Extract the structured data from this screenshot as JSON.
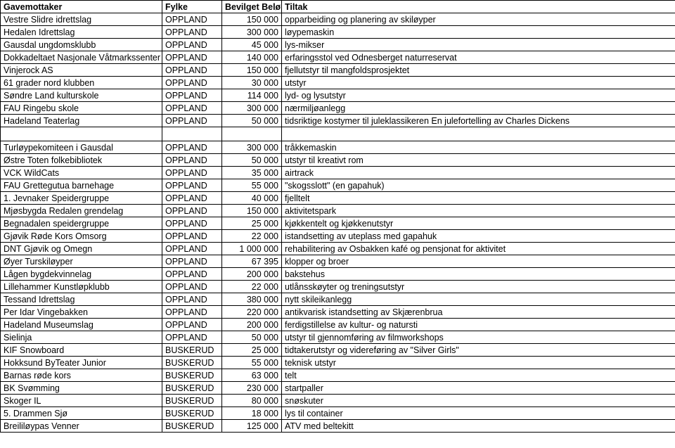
{
  "columns": [
    "Gavemottaker",
    "Fylke",
    "Bevilget Beløp",
    "Tiltak"
  ],
  "groups": [
    {
      "rows": [
        {
          "recipient": "Vestre Slidre idrettslag",
          "county": "OPPLAND",
          "amount": "150 000",
          "measure": "opparbeiding og planering av skiløyper"
        },
        {
          "recipient": "Hedalen Idrettslag",
          "county": "OPPLAND",
          "amount": "300 000",
          "measure": "løypemaskin"
        },
        {
          "recipient": "Gausdal ungdomsklubb",
          "county": "OPPLAND",
          "amount": "45 000",
          "measure": "lys-mikser"
        },
        {
          "recipient": "Dokkadeltaet Nasjonale Våtmarkssenter",
          "county": "OPPLAND",
          "amount": "140 000",
          "measure": "erfaringsstol ved Odnesberget naturreservat"
        },
        {
          "recipient": "Vinjerock AS",
          "county": "OPPLAND",
          "amount": "150 000",
          "measure": "fjellutstyr til mangfoldsprosjektet"
        },
        {
          "recipient": "61 grader nord klubben",
          "county": "OPPLAND",
          "amount": "30 000",
          "measure": "utstyr"
        },
        {
          "recipient": "Søndre Land kulturskole",
          "county": "OPPLAND",
          "amount": "114 000",
          "measure": "lyd- og lysutstyr"
        },
        {
          "recipient": "FAU Ringebu skole",
          "county": "OPPLAND",
          "amount": "300 000",
          "measure": "nærmiljøanlegg"
        },
        {
          "recipient": "Hadeland Teaterlag",
          "county": "OPPLAND",
          "amount": "50 000",
          "measure": "tidsriktige kostymer til juleklassikeren En julefortelling av Charles Dickens"
        }
      ]
    },
    {
      "rows": [
        {
          "recipient": "Turløypekomiteen i Gausdal",
          "county": "OPPLAND",
          "amount": "300 000",
          "measure": "tråkkemaskin"
        },
        {
          "recipient": "Østre Toten folkebibliotek",
          "county": "OPPLAND",
          "amount": "50 000",
          "measure": "utstyr til kreativt rom"
        },
        {
          "recipient": "VCK WildCats",
          "county": "OPPLAND",
          "amount": "35 000",
          "measure": "airtrack"
        },
        {
          "recipient": "FAU Grettegutua barnehage",
          "county": "OPPLAND",
          "amount": "55 000",
          "measure": "\"skogsslott\" (en gapahuk)"
        },
        {
          "recipient": "1. Jevnaker Speidergruppe",
          "county": "OPPLAND",
          "amount": "40 000",
          "measure": "fjelltelt"
        },
        {
          "recipient": "Mjøsbygda Redalen grendelag",
          "county": "OPPLAND",
          "amount": "150 000",
          "measure": "aktivitetspark"
        },
        {
          "recipient": "Begnadalen speidergruppe",
          "county": "OPPLAND",
          "amount": "25 000",
          "measure": "kjøkkentelt og kjøkkenutstyr"
        },
        {
          "recipient": "Gjøvik Røde Kors Omsorg",
          "county": "OPPLAND",
          "amount": "22 000",
          "measure": "istandsetting av uteplass med gapahuk"
        },
        {
          "recipient": "DNT Gjøvik og Omegn",
          "county": "OPPLAND",
          "amount": "1 000 000",
          "measure": "rehabilitering av Osbakken kafé og pensjonat for aktivitet"
        },
        {
          "recipient": "Øyer Turskiløyper",
          "county": "OPPLAND",
          "amount": "67 395",
          "measure": "klopper og broer"
        },
        {
          "recipient": "Lågen bygdekvinnelag",
          "county": "OPPLAND",
          "amount": "200 000",
          "measure": "bakstehus"
        },
        {
          "recipient": "Lillehammer Kunstløpklubb",
          "county": "OPPLAND",
          "amount": "22 000",
          "measure": "utlånsskøyter og treningsutstyr"
        },
        {
          "recipient": "Tessand Idrettslag",
          "county": "OPPLAND",
          "amount": "380 000",
          "measure": "nytt skileikanlegg"
        },
        {
          "recipient": "Per Idar Vingebakken",
          "county": "OPPLAND",
          "amount": "220 000",
          "measure": "antikvarisk istandsetting av Skjærenbrua"
        },
        {
          "recipient": "Hadeland Museumslag",
          "county": "OPPLAND",
          "amount": "200 000",
          "measure": "ferdigstillelse av kultur- og natursti"
        },
        {
          "recipient": "Sielinja",
          "county": "OPPLAND",
          "amount": "50 000",
          "measure": "utstyr til gjennomføring av filmworkshops"
        },
        {
          "recipient": "KIF Snowboard",
          "county": "BUSKERUD",
          "amount": "25 000",
          "measure": "tidtakerutstyr og videreføring av \"Silver Girls\""
        },
        {
          "recipient": "Hokksund ByTeater Junior",
          "county": "BUSKERUD",
          "amount": "55 000",
          "measure": "teknisk utstyr"
        },
        {
          "recipient": "Barnas røde kors",
          "county": "BUSKERUD",
          "amount": "63 000",
          "measure": "telt"
        },
        {
          "recipient": "BK Svømming",
          "county": "BUSKERUD",
          "amount": "230 000",
          "measure": "startpaller"
        },
        {
          "recipient": "Skoger IL",
          "county": "BUSKERUD",
          "amount": "80 000",
          "measure": "snøskuter"
        },
        {
          "recipient": "5. Drammen Sjø",
          "county": "BUSKERUD",
          "amount": "18 000",
          "measure": "lys til container"
        },
        {
          "recipient": "Breililøypas Venner",
          "county": "BUSKERUD",
          "amount": "125 000",
          "measure": "ATV med beltekitt"
        }
      ]
    }
  ]
}
